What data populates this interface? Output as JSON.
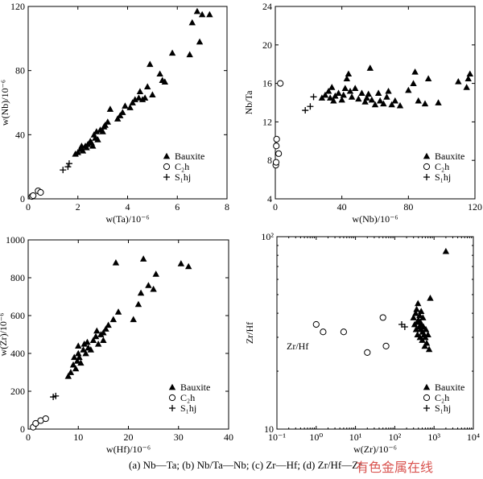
{
  "chart_data": [
    {
      "id": "a",
      "type": "scatter",
      "xlabel": "w(Ta)/10⁻⁶",
      "ylabel": "w(Nb)/10⁻⁶",
      "xlim": [
        0,
        8
      ],
      "ylim": [
        0,
        120
      ],
      "xticks": [
        "0",
        "2",
        "4",
        "6",
        "8"
      ],
      "yticks": [
        "0",
        "40",
        "80",
        "120"
      ],
      "legend": [
        "Bauxite",
        "C₂h",
        "S₁hj"
      ],
      "series": [
        {
          "name": "Bauxite",
          "marker": "triangle",
          "points": [
            [
              1.9,
              28
            ],
            [
              2.0,
              29
            ],
            [
              2.1,
              31
            ],
            [
              2.15,
              33
            ],
            [
              2.2,
              30
            ],
            [
              2.3,
              33
            ],
            [
              2.35,
              32
            ],
            [
              2.4,
              34
            ],
            [
              2.5,
              36
            ],
            [
              2.55,
              35
            ],
            [
              2.6,
              33
            ],
            [
              2.65,
              40
            ],
            [
              2.7,
              38
            ],
            [
              2.75,
              42
            ],
            [
              2.8,
              37
            ],
            [
              2.9,
              43
            ],
            [
              3.0,
              42
            ],
            [
              3.05,
              45
            ],
            [
              3.1,
              46
            ],
            [
              3.2,
              48
            ],
            [
              3.3,
              56
            ],
            [
              3.6,
              50
            ],
            [
              3.7,
              52
            ],
            [
              3.8,
              54
            ],
            [
              3.9,
              58
            ],
            [
              4.1,
              57
            ],
            [
              4.2,
              60
            ],
            [
              4.3,
              62
            ],
            [
              4.45,
              63
            ],
            [
              4.5,
              67
            ],
            [
              4.6,
              62
            ],
            [
              4.7,
              63
            ],
            [
              4.8,
              70
            ],
            [
              4.9,
              84
            ],
            [
              5.0,
              65
            ],
            [
              5.3,
              78
            ],
            [
              5.4,
              74
            ],
            [
              5.5,
              73
            ],
            [
              5.8,
              91
            ],
            [
              6.5,
              90
            ],
            [
              6.6,
              110
            ],
            [
              6.8,
              117
            ],
            [
              6.9,
              98
            ],
            [
              7.0,
              115
            ],
            [
              7.3,
              115
            ]
          ]
        },
        {
          "name": "C₂h",
          "marker": "circle",
          "points": [
            [
              0.15,
              1.5
            ],
            [
              0.2,
              2
            ],
            [
              0.4,
              5
            ],
            [
              0.5,
              4
            ]
          ]
        },
        {
          "name": "S₁hj",
          "marker": "plus",
          "points": [
            [
              1.4,
              18
            ],
            [
              1.6,
              20
            ],
            [
              1.65,
              22
            ]
          ]
        }
      ]
    },
    {
      "id": "b",
      "type": "scatter",
      "xlabel": "w(Nb)/10⁻⁶",
      "ylabel": "Nb/Ta",
      "xlim": [
        0,
        120
      ],
      "ylim": [
        4,
        24
      ],
      "xticks": [
        "0",
        "40",
        "80",
        "120"
      ],
      "yticks": [
        "4",
        "8",
        "12",
        "16",
        "20",
        "24"
      ],
      "legend": [
        "Bauxite",
        "C₂h",
        "S₁hj"
      ],
      "series": [
        {
          "name": "Bauxite",
          "marker": "triangle",
          "points": [
            [
              28,
              14.5
            ],
            [
              30,
              14.8
            ],
            [
              32,
              15.2
            ],
            [
              33,
              14.5
            ],
            [
              34,
              15.6
            ],
            [
              35,
              14.2
            ],
            [
              36,
              14.7
            ],
            [
              38,
              15.0
            ],
            [
              40,
              14.3
            ],
            [
              41,
              14.8
            ],
            [
              42,
              15.5
            ],
            [
              43,
              16.5
            ],
            [
              44,
              17
            ],
            [
              45,
              15.2
            ],
            [
              46,
              14.6
            ],
            [
              48,
              15.5
            ],
            [
              50,
              14.4
            ],
            [
              52,
              15.0
            ],
            [
              54,
              14.1
            ],
            [
              55,
              14.5
            ],
            [
              56,
              14.9
            ],
            [
              57,
              17.6
            ],
            [
              58,
              14.3
            ],
            [
              60,
              13.8
            ],
            [
              62,
              15.0
            ],
            [
              63,
              14.2
            ],
            [
              65,
              13.9
            ],
            [
              67,
              14.6
            ],
            [
              68,
              15.2
            ],
            [
              70,
              13.8
            ],
            [
              72,
              14.2
            ],
            [
              75,
              13.7
            ],
            [
              80,
              15.3
            ],
            [
              83,
              16.0
            ],
            [
              84,
              17.2
            ],
            [
              86,
              14.2
            ],
            [
              90,
              13.9
            ],
            [
              92,
              16.5
            ],
            [
              98,
              14.0
            ],
            [
              110,
              16.2
            ],
            [
              115,
              15.6
            ],
            [
              116,
              16.5
            ],
            [
              117,
              17.0
            ]
          ]
        },
        {
          "name": "C₂h",
          "marker": "circle",
          "points": [
            [
              0.3,
              7.5
            ],
            [
              0.5,
              7.8
            ],
            [
              0.6,
              9.5
            ],
            [
              0.8,
              10.2
            ],
            [
              2,
              8.7
            ],
            [
              3,
              16
            ]
          ]
        },
        {
          "name": "S₁hj",
          "marker": "plus",
          "points": [
            [
              18,
              13.2
            ],
            [
              21,
              13.6
            ],
            [
              23,
              14.6
            ]
          ]
        }
      ]
    },
    {
      "id": "c",
      "type": "scatter",
      "xlabel": "w(Hf)/10⁻⁶",
      "ylabel": "w(Zr)/10⁻⁶",
      "xlim": [
        0,
        40
      ],
      "ylim": [
        0,
        1000
      ],
      "xticks": [
        "0",
        "10",
        "20",
        "30",
        "40"
      ],
      "yticks": [
        "0",
        "200",
        "400",
        "600",
        "800",
        "1000"
      ],
      "legend": [
        "Bauxite",
        "C₂h",
        "S₁hj"
      ],
      "series": [
        {
          "name": "Bauxite",
          "marker": "triangle",
          "points": [
            [
              8,
              280
            ],
            [
              8.5,
              300
            ],
            [
              9,
              340
            ],
            [
              9.2,
              380
            ],
            [
              9.5,
              320
            ],
            [
              9.8,
              360
            ],
            [
              10,
              400
            ],
            [
              10,
              440
            ],
            [
              10.2,
              380
            ],
            [
              10.5,
              350
            ],
            [
              11,
              420
            ],
            [
              11.2,
              450
            ],
            [
              11.5,
              400
            ],
            [
              11.8,
              460
            ],
            [
              12,
              430
            ],
            [
              12.5,
              420
            ],
            [
              13,
              470
            ],
            [
              13.5,
              490
            ],
            [
              13.7,
              520
            ],
            [
              14,
              450
            ],
            [
              14.5,
              500
            ],
            [
              15,
              470
            ],
            [
              15,
              510
            ],
            [
              15.5,
              530
            ],
            [
              16,
              550
            ],
            [
              17,
              580
            ],
            [
              17.5,
              880
            ],
            [
              18,
              620
            ],
            [
              21,
              580
            ],
            [
              22,
              660
            ],
            [
              22.5,
              720
            ],
            [
              23,
              900
            ],
            [
              24,
              760
            ],
            [
              25,
              740
            ],
            [
              25.5,
              820
            ],
            [
              30.5,
              875
            ],
            [
              32,
              860
            ]
          ]
        },
        {
          "name": "C₂h",
          "marker": "circle",
          "points": [
            [
              1,
              10
            ],
            [
              1.5,
              30
            ],
            [
              2.5,
              45
            ],
            [
              3.5,
              55
            ]
          ]
        },
        {
          "name": "S₁hj",
          "marker": "plus",
          "points": [
            [
              5,
              170
            ],
            [
              5.5,
              175
            ]
          ]
        }
      ]
    },
    {
      "id": "d",
      "type": "scatter",
      "xlabel": "w(Zr)/10⁻⁶",
      "ylabel": "Zr/Hf",
      "xscale": "log",
      "yscale": "log",
      "xlim": [
        0.1,
        10000
      ],
      "ylim": [
        10,
        100
      ],
      "xticks": [
        "10⁻¹",
        "10⁰",
        "10¹",
        "10²",
        "10³",
        "10⁴"
      ],
      "yticks": [
        "10",
        "10²"
      ],
      "annotation": "Zr/Hf",
      "legend": [
        "Bauxite",
        "C₂h",
        "S₁hj"
      ],
      "series": [
        {
          "name": "Bauxite",
          "marker": "triangle",
          "points": [
            [
              300,
              38
            ],
            [
              320,
              35
            ],
            [
              340,
              40
            ],
            [
              350,
              33
            ],
            [
              360,
              42
            ],
            [
              370,
              36
            ],
            [
              380,
              31
            ],
            [
              390,
              45
            ],
            [
              400,
              37
            ],
            [
              420,
              34
            ],
            [
              430,
              39
            ],
            [
              440,
              30
            ],
            [
              450,
              36
            ],
            [
              460,
              33
            ],
            [
              470,
              41
            ],
            [
              480,
              35
            ],
            [
              500,
              29
            ],
            [
              510,
              32
            ],
            [
              520,
              38
            ],
            [
              540,
              34
            ],
            [
              560,
              31
            ],
            [
              580,
              27
            ],
            [
              600,
              30
            ],
            [
              620,
              33
            ],
            [
              650,
              28
            ],
            [
              700,
              31
            ],
            [
              750,
              26
            ],
            [
              800,
              48
            ],
            [
              2000,
              84
            ]
          ]
        },
        {
          "name": "C₂h",
          "marker": "circle",
          "points": [
            [
              1,
              35
            ],
            [
              1.5,
              32
            ],
            [
              5,
              32
            ],
            [
              20,
              25
            ],
            [
              50,
              38
            ],
            [
              60,
              27
            ]
          ]
        },
        {
          "name": "S₁hj",
          "marker": "plus",
          "points": [
            [
              150,
              35
            ],
            [
              180,
              34
            ]
          ]
        }
      ]
    }
  ],
  "caption": "(a) Nb—Ta; (b) Nb/Ta—Nb; (c) Zr—Hf; (d) Zr/Hf—Zr",
  "watermark": "有色金属在线"
}
